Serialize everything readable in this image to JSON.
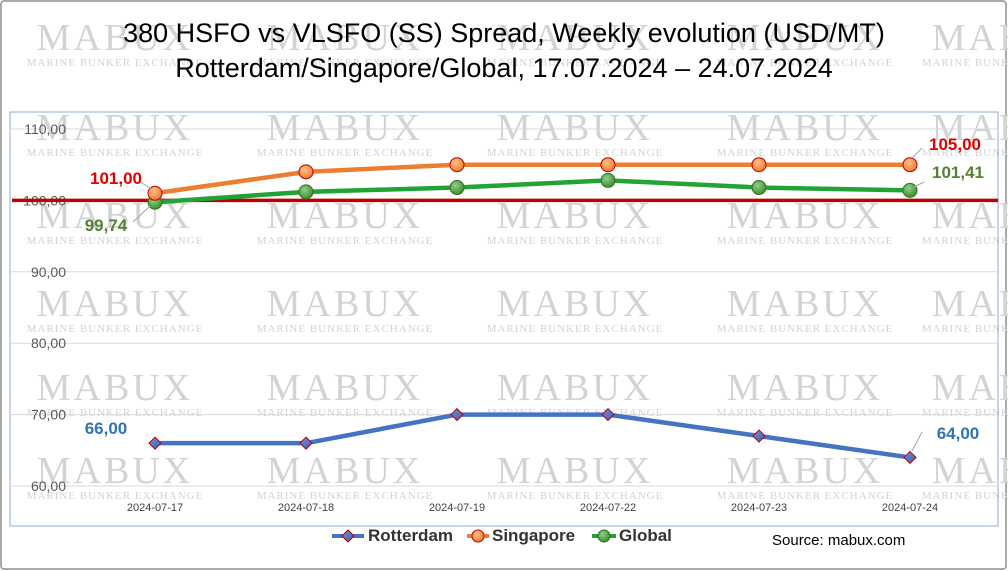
{
  "title_line1": "380 HSFO vs VLSFO (SS) Spread, Weekly evolution (USD/MT)",
  "title_line2": "Rotterdam/Singapore/Global, 17.07.2024 – 24.07.2024",
  "source": "Source: mabux.com",
  "watermark": {
    "main": "MABUX",
    "sub": "MARINE BUNKER EXCHANGE"
  },
  "chart_data": {
    "type": "line",
    "x": [
      "2024-07-17",
      "2024-07-18",
      "2024-07-19",
      "2024-07-22",
      "2024-07-23",
      "2024-07-24"
    ],
    "yticks": [
      "60,00",
      "70,00",
      "80,00",
      "90,00",
      "100,00",
      "110,00"
    ],
    "ylim": [
      60,
      110
    ],
    "grid": true,
    "legend": "bottom",
    "reference_line": {
      "value": 100,
      "color": "#c00000"
    },
    "series": [
      {
        "name": "Rotterdam",
        "values": [
          66,
          66,
          70,
          70,
          67,
          64
        ],
        "color": "#4472c4",
        "marker": "diamond",
        "labels": {
          "first": "66,00",
          "last": "64,00"
        },
        "label_color": "#2e75b6"
      },
      {
        "name": "Singapore",
        "values": [
          101,
          104,
          105,
          105,
          105,
          105
        ],
        "color": "#ed7d31",
        "marker": "circle",
        "labels": {
          "first": "101,00",
          "last": "105,00"
        },
        "label_color": "#e00000"
      },
      {
        "name": "Global",
        "values": [
          99.74,
          101.2,
          101.8,
          102.8,
          101.8,
          101.41
        ],
        "color": "#21a336",
        "marker": "circle",
        "labels": {
          "first": "99,74",
          "last": "101,41"
        },
        "label_color": "#548235"
      }
    ]
  }
}
